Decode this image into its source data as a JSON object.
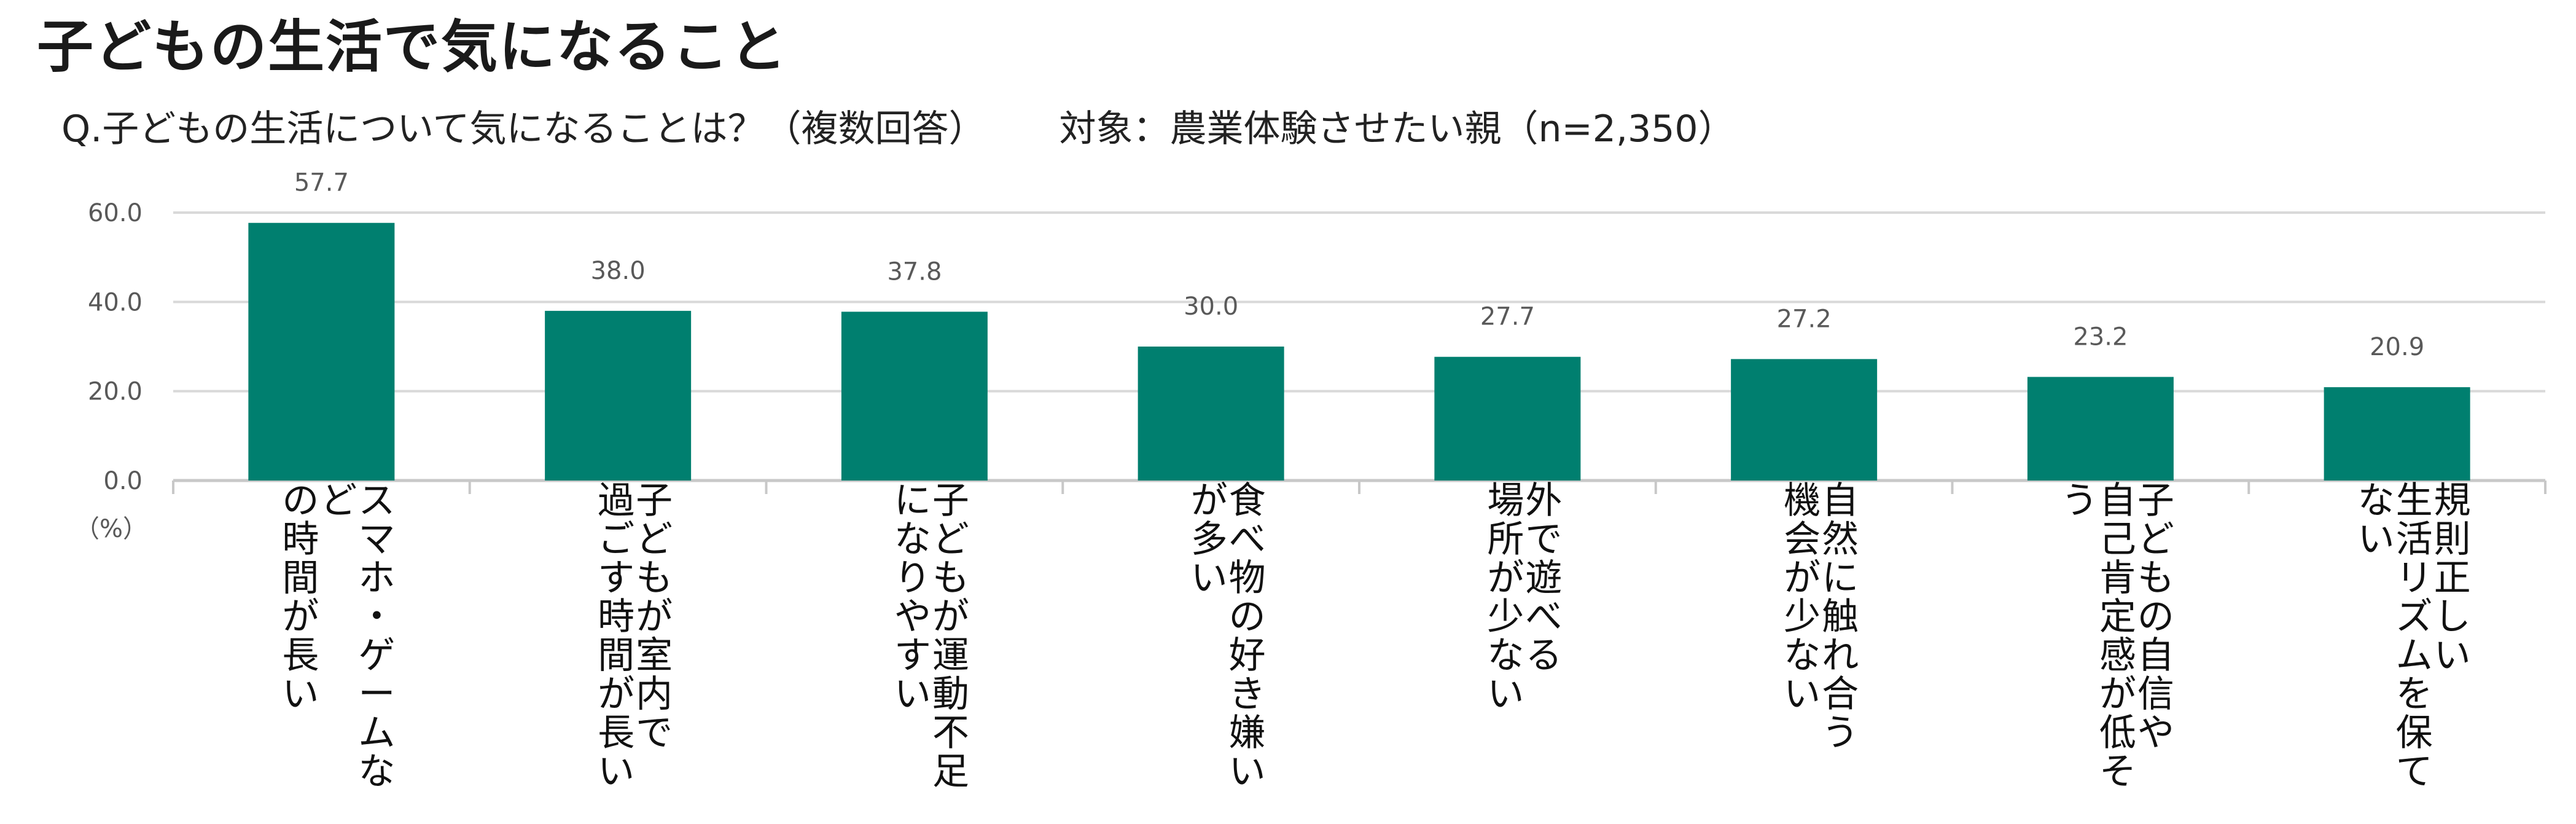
{
  "title": "子どもの生活で気になること",
  "subtitle": {
    "question": "Q.子どもの生活について気になることは？（複数回答）",
    "target": "対象：農業体験させたい親（n=2,350）"
  },
  "chart_data": {
    "type": "bar",
    "categories": [
      "スマホ・ゲームなどの時間が長い",
      "子どもが室内で過ごす時間が長い",
      "子どもが運動不足になりやすい",
      "食べ物の好き嫌いが多い",
      "外で遊べる場所が少ない",
      "自然に触れ合う機会が少ない",
      "子どもの自信や自己肯定感が低そう",
      "規則正しい生活リズムを保てない"
    ],
    "category_lines": [
      [
        "スマホ・ゲームな",
        "ど",
        "の時間が長い"
      ],
      [
        "子どもが室内で",
        "過ごす時間が長い"
      ],
      [
        "子どもが運動不足",
        "になりやすい"
      ],
      [
        "食べ物の好き嫌い",
        "が多い"
      ],
      [
        "外で遊べる",
        "場所が少ない"
      ],
      [
        "自然に触れ合う",
        "機会が少ない"
      ],
      [
        "子どもの自信や",
        "自己肯定感が低そ",
        "う"
      ],
      [
        "規則正しい",
        "生活リズムを保て",
        "ない"
      ]
    ],
    "values": [
      57.7,
      38.0,
      37.8,
      30.0,
      27.7,
      27.2,
      23.2,
      20.9
    ],
    "value_labels": [
      "57.7",
      "38.0",
      "37.8",
      "30.0",
      "27.7",
      "27.2",
      "23.2",
      "20.9"
    ],
    "yticks": [
      "0.0",
      "20.0",
      "40.0",
      "60.0"
    ],
    "ylabel": "（%）",
    "ylim": [
      0,
      60
    ],
    "grid": true,
    "legend": "none",
    "bar_color": "#007F6F"
  }
}
